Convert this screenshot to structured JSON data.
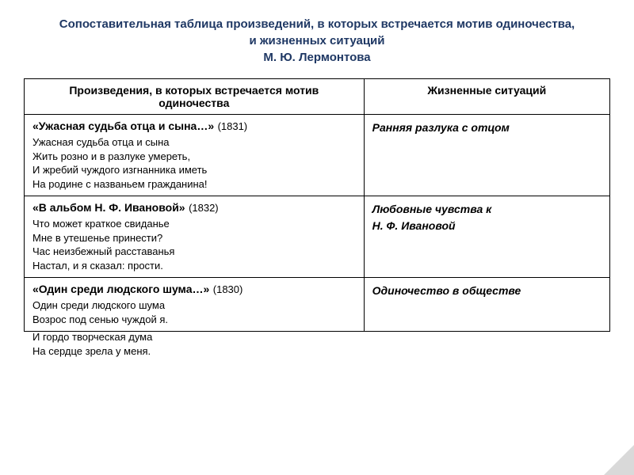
{
  "title": "Сопоставительная таблица произведений, в которых встречается мотив одиночества, и жизненных ситуаций\nМ. Ю. Лермонтова",
  "table": {
    "header_col1": "Произведения, в которых встречается мотив одиночества",
    "header_col2": "Жизненные ситуаций",
    "rows": [
      {
        "work_title": "«Ужасная судьба отца и сына…»",
        "work_year": "(1831)",
        "work_body": "Ужасная судьба отца и сына\nЖить розно и в разлуке умереть,\nИ жребий чуждого изгнанника иметь\nНа родине с названьем гражданина!",
        "situation": "Ранняя разлука  с отцом"
      },
      {
        "work_title": "«В альбом Н. Ф. Ивановой»",
        "work_year": "(1832)",
        "work_body": "Что может краткое свиданье\nМне в утешенье принести?\nЧас неизбежный расставанья\nНастал, и я сказал: прости.",
        "situation": "Любовные чувства к\nН. Ф. Ивановой"
      },
      {
        "work_title": "«Один среди людского шума…»",
        "work_year": "(1830)",
        "work_body": "Один среди людского шума\nВозрос под сенью чуждой я.",
        "situation": "Одиночество в обществе"
      }
    ],
    "overflow_lines": "И гордо творческая дума\nНа сердце зрела у меня."
  },
  "colors": {
    "title_color": "#1f3864",
    "border_color": "#000000",
    "background": "#ffffff",
    "corner": "#d9d9d9"
  },
  "fonts": {
    "title_size": 15,
    "header_size": 14,
    "body_size": 13,
    "situation_size": 14
  }
}
